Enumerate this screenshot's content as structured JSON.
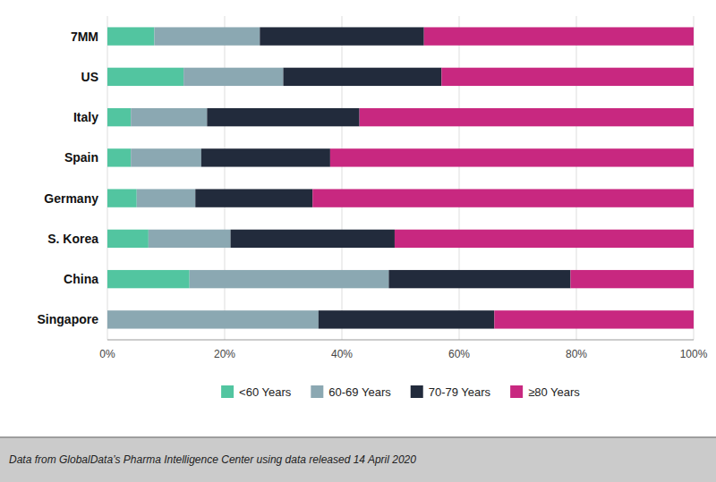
{
  "chart_data": {
    "type": "bar",
    "orientation": "horizontal",
    "stacked": true,
    "categories": [
      "7MM",
      "US",
      "Italy",
      "Spain",
      "Germany",
      "S. Korea",
      "China",
      "Singapore"
    ],
    "series": [
      {
        "name": "<60 Years",
        "color": "#52C5A0",
        "values": [
          8,
          13,
          4,
          4,
          5,
          7,
          14,
          0
        ]
      },
      {
        "name": "60-69 Years",
        "color": "#8BA8B2",
        "values": [
          18,
          17,
          13,
          12,
          10,
          14,
          34,
          36
        ]
      },
      {
        "name": "70-79 Years",
        "color": "#222B3C",
        "values": [
          28,
          27,
          26,
          22,
          20,
          28,
          31,
          30
        ]
      },
      {
        "name": "≥80 Years",
        "color": "#C82880",
        "values": [
          46,
          43,
          57,
          62,
          65,
          51,
          21,
          34
        ]
      }
    ],
    "xlim": [
      0,
      100
    ],
    "xticks": [
      {
        "value": 0,
        "label": "0%"
      },
      {
        "value": 20,
        "label": "20%"
      },
      {
        "value": 40,
        "label": "40%"
      },
      {
        "value": 60,
        "label": "60%"
      },
      {
        "value": 80,
        "label": "80%"
      },
      {
        "value": 100,
        "label": "100%"
      }
    ],
    "grid": true,
    "legend": "bottom",
    "annotations": [
      "Data from GlobalData’s Pharma Intelligence Center using data released 14 April 2020"
    ]
  }
}
